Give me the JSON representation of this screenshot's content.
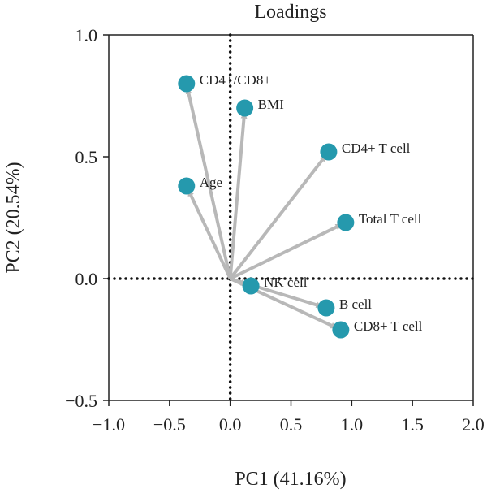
{
  "chart_data": {
    "type": "scatter",
    "title": "Loadings",
    "xlabel": "PC1 (41.16%)",
    "ylabel": "PC2 (20.54%)",
    "xlim": [
      -1.0,
      2.0
    ],
    "ylim": [
      -0.5,
      1.0
    ],
    "xticks": [
      -1.0,
      -0.5,
      0.0,
      0.5,
      1.0,
      1.5,
      2.0
    ],
    "xtick_labels": [
      "−1.0",
      "−0.5",
      "0.0",
      "0.5",
      "1.0",
      "1.5",
      "2.0"
    ],
    "yticks": [
      -0.5,
      0.0,
      0.5,
      1.0
    ],
    "ytick_labels": [
      "−0.5",
      "0.0",
      "0.5",
      "1.0"
    ],
    "grid": false,
    "reference_lines": {
      "x": 0,
      "y": 0,
      "style": "dotted"
    },
    "arrows_from_origin": true,
    "colors": {
      "point": "#2599ad",
      "arrow": "#b8b8b8",
      "axis": "#222222"
    },
    "points": [
      {
        "label": "CD4+/CD8+",
        "x": -0.36,
        "y": 0.8
      },
      {
        "label": "BMI",
        "x": 0.12,
        "y": 0.7
      },
      {
        "label": "CD4+ T cell",
        "x": 0.81,
        "y": 0.52
      },
      {
        "label": "Age",
        "x": -0.36,
        "y": 0.38
      },
      {
        "label": "Total T cell",
        "x": 0.95,
        "y": 0.23
      },
      {
        "label": "NK cell",
        "x": 0.17,
        "y": -0.03
      },
      {
        "label": "B cell",
        "x": 0.79,
        "y": -0.12
      },
      {
        "label": "CD8+ T cell",
        "x": 0.91,
        "y": -0.21
      }
    ]
  }
}
